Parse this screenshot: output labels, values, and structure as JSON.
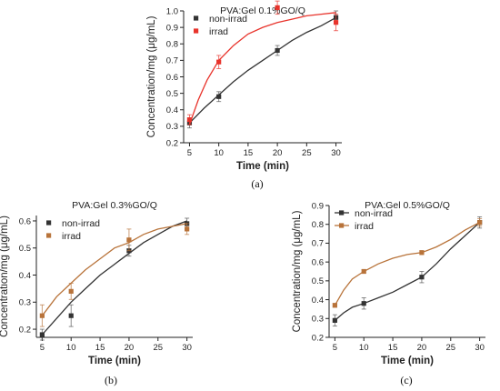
{
  "charts": [
    {
      "id": "a",
      "caption": "(a)",
      "chart_data": {
        "type": "scatter",
        "title": "PVA:Gel 0.1%GO/Q",
        "xlabel": "Time (min)",
        "ylabel": "Concentration/mg (μg/mL)",
        "xlim": [
          4,
          31
        ],
        "ylim": [
          0.2,
          1.0
        ],
        "xticks": [
          5,
          10,
          15,
          20,
          25,
          30
        ],
        "yticks": [
          0.2,
          0.3,
          0.4,
          0.5,
          0.6,
          0.7,
          0.8,
          0.9,
          1.0
        ],
        "grid": false,
        "legend_position": "top-left",
        "series": [
          {
            "name": "non-irrad",
            "color": "#333333",
            "x": [
              5,
              10,
              20,
              30
            ],
            "y": [
              0.32,
              0.48,
              0.76,
              0.96
            ],
            "err": [
              0.03,
              0.03,
              0.03,
              0.04
            ],
            "fit": [
              [
                5,
                0.32
              ],
              [
                7.5,
                0.41
              ],
              [
                10,
                0.49
              ],
              [
                12.5,
                0.57
              ],
              [
                15,
                0.64
              ],
              [
                17.5,
                0.7
              ],
              [
                20,
                0.76
              ],
              [
                22.5,
                0.82
              ],
              [
                25,
                0.87
              ],
              [
                27.5,
                0.91
              ],
              [
                30,
                0.96
              ]
            ]
          },
          {
            "name": "irrad",
            "color": "#e8332b",
            "x": [
              5,
              10,
              20,
              30
            ],
            "y": [
              0.34,
              0.69,
              1.02,
              0.93
            ],
            "err": [
              0.03,
              0.04,
              0.04,
              0.05
            ],
            "fit": [
              [
                5,
                0.31
              ],
              [
                6.5,
                0.46
              ],
              [
                8,
                0.58
              ],
              [
                10,
                0.7
              ],
              [
                12.5,
                0.79
              ],
              [
                15,
                0.86
              ],
              [
                17.5,
                0.9
              ],
              [
                20,
                0.93
              ],
              [
                22.5,
                0.95
              ],
              [
                25,
                0.97
              ],
              [
                27.5,
                0.98
              ],
              [
                30,
                0.99
              ]
            ]
          }
        ]
      }
    },
    {
      "id": "b",
      "caption": "(b)",
      "chart_data": {
        "type": "scatter",
        "title": "PVA:Gel 0.3%GO/Q",
        "xlabel": "Time (min)",
        "ylabel": "Concentration/mg (μg/mL)",
        "xlim": [
          4,
          31
        ],
        "ylim": [
          0.17,
          0.62
        ],
        "xticks": [
          5,
          10,
          15,
          20,
          25,
          30
        ],
        "yticks": [
          0.2,
          0.3,
          0.4,
          0.5,
          0.6
        ],
        "grid": false,
        "legend_position": "top-left",
        "series": [
          {
            "name": "non-irrad",
            "color": "#333333",
            "x": [
              5,
              10,
              20,
              30
            ],
            "y": [
              0.18,
              0.25,
              0.49,
              0.59
            ],
            "err": [
              0.02,
              0.04,
              0.02,
              0.02
            ],
            "fit": [
              [
                5,
                0.18
              ],
              [
                7.5,
                0.24
              ],
              [
                10,
                0.3
              ],
              [
                12.5,
                0.35
              ],
              [
                15,
                0.4
              ],
              [
                17.5,
                0.44
              ],
              [
                20,
                0.48
              ],
              [
                22.5,
                0.52
              ],
              [
                25,
                0.55
              ],
              [
                27.5,
                0.58
              ],
              [
                30,
                0.6
              ]
            ]
          },
          {
            "name": "irrad",
            "color": "#b8733a",
            "x": [
              5,
              10,
              20,
              30
            ],
            "y": [
              0.25,
              0.34,
              0.53,
              0.57
            ],
            "err": [
              0.04,
              0.03,
              0.04,
              0.02
            ],
            "fit": [
              [
                5,
                0.25
              ],
              [
                7.5,
                0.32
              ],
              [
                10,
                0.37
              ],
              [
                12.5,
                0.42
              ],
              [
                15,
                0.46
              ],
              [
                17.5,
                0.5
              ],
              [
                20,
                0.52
              ],
              [
                22.5,
                0.55
              ],
              [
                25,
                0.57
              ],
              [
                27.5,
                0.58
              ],
              [
                30,
                0.59
              ]
            ]
          }
        ]
      }
    },
    {
      "id": "c",
      "caption": "(c)",
      "chart_data": {
        "type": "line",
        "title": "PVA:Gel 0.5%GO/Q",
        "xlabel": "Time (min)",
        "ylabel": "Concentration/mg (μg/mL)",
        "xlim": [
          4,
          31
        ],
        "ylim": [
          0.2,
          0.9
        ],
        "xticks": [
          5,
          10,
          15,
          20,
          25,
          30
        ],
        "yticks": [
          0.2,
          0.3,
          0.4,
          0.5,
          0.6,
          0.7,
          0.8,
          0.9
        ],
        "grid": false,
        "legend_position": "top-left",
        "series": [
          {
            "name": "non-irrad",
            "color": "#333333",
            "x": [
              5,
              10,
              20,
              30
            ],
            "y": [
              0.29,
              0.38,
              0.52,
              0.81
            ],
            "err": [
              0.03,
              0.03,
              0.03,
              0.03
            ],
            "fit": [
              [
                5,
                0.29
              ],
              [
                6.5,
                0.33
              ],
              [
                8,
                0.36
              ],
              [
                10,
                0.38
              ],
              [
                12.5,
                0.41
              ],
              [
                15,
                0.44
              ],
              [
                17.5,
                0.48
              ],
              [
                20,
                0.52
              ],
              [
                22.5,
                0.59
              ],
              [
                25,
                0.67
              ],
              [
                27.5,
                0.74
              ],
              [
                30,
                0.81
              ]
            ]
          },
          {
            "name": "irrad",
            "color": "#b8733a",
            "x": [
              5,
              10,
              20,
              30
            ],
            "y": [
              0.37,
              0.55,
              0.65,
              0.81
            ],
            "err": [
              0.01,
              0.01,
              0.01,
              0.02
            ],
            "fit": [
              [
                5,
                0.37
              ],
              [
                6.5,
                0.45
              ],
              [
                8,
                0.51
              ],
              [
                10,
                0.55
              ],
              [
                12.5,
                0.59
              ],
              [
                15,
                0.62
              ],
              [
                17.5,
                0.64
              ],
              [
                20,
                0.65
              ],
              [
                22.5,
                0.68
              ],
              [
                25,
                0.72
              ],
              [
                27.5,
                0.77
              ],
              [
                30,
                0.81
              ]
            ]
          }
        ]
      }
    }
  ]
}
